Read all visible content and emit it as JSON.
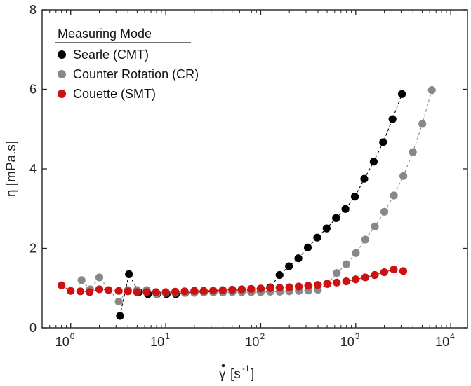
{
  "chart_data": {
    "type": "scatter",
    "title": "",
    "xlabel": "γ̇ [s⁻¹]",
    "ylabel": "η [mPa.s]",
    "xscale": "log",
    "xlim": [
      0.5,
      15000
    ],
    "ylim": [
      0,
      8
    ],
    "x_ticks": [
      1,
      10,
      100,
      1000,
      10000
    ],
    "x_tick_labels": [
      "10^0",
      "10^1",
      "10^2",
      "10^3",
      "10^4"
    ],
    "y_ticks": [
      0,
      2,
      4,
      6,
      8
    ],
    "y_tick_labels": [
      "0",
      "2",
      "4",
      "6",
      "8"
    ],
    "grid": false,
    "legend": {
      "title": "Measuring Mode",
      "placement": "top-left"
    },
    "series": [
      {
        "name": "Searle (CMT)",
        "color": "#000000",
        "line": "dashed",
        "x": [
          3.3,
          4.1,
          5.2,
          6.5,
          8.1,
          10.2,
          12.8,
          16,
          20,
          25.4,
          31.9,
          40,
          50.3,
          63.2,
          79.4,
          100,
          125.6,
          157.8,
          198.2,
          249,
          312.8,
          393,
          493.7,
          620.3,
          779.2,
          979,
          1230,
          1545,
          1941,
          2438,
          3063
        ],
        "y": [
          0.3,
          1.35,
          0.9,
          0.85,
          0.85,
          0.85,
          0.85,
          0.88,
          0.9,
          0.9,
          0.92,
          0.92,
          0.93,
          0.94,
          0.96,
          0.98,
          1.02,
          1.33,
          1.55,
          1.75,
          2.02,
          2.27,
          2.5,
          2.76,
          2.99,
          3.3,
          3.75,
          4.18,
          4.67,
          5.25,
          5.88
        ]
      },
      {
        "name": "Counter Rotation (CR)",
        "color": "#888888",
        "line": "dashed",
        "x": [
          1.3,
          1.6,
          2.0,
          3.2,
          4.0,
          5.0,
          6.3,
          8.0,
          10,
          12.6,
          15.9,
          20,
          25.2,
          31.7,
          39.9,
          50.2,
          63.2,
          79.6,
          100,
          126,
          159,
          200,
          252,
          317,
          399,
          502,
          632,
          796,
          1002,
          1262,
          1589,
          2000,
          2518,
          3170,
          3991,
          5024,
          6325
        ],
        "y": [
          1.2,
          0.97,
          1.27,
          0.66,
          0.95,
          0.95,
          0.95,
          0.85,
          0.88,
          0.88,
          0.88,
          0.88,
          0.89,
          0.89,
          0.89,
          0.9,
          0.9,
          0.9,
          0.9,
          0.91,
          0.91,
          0.92,
          0.93,
          0.94,
          0.96,
          1.1,
          1.38,
          1.6,
          1.88,
          2.22,
          2.55,
          2.92,
          3.33,
          3.82,
          4.42,
          5.13,
          5.98
        ]
      },
      {
        "name": "Couette (SMT)",
        "color": "#cc1111",
        "line": "dashed",
        "x": [
          0.8,
          1.0,
          1.26,
          1.58,
          2.0,
          2.5,
          3.2,
          4.0,
          5.0,
          6.3,
          7.9,
          10,
          12.6,
          15.8,
          20,
          25.1,
          31.6,
          39.8,
          50.1,
          63.1,
          79.4,
          100,
          126,
          158,
          200,
          251,
          316,
          398,
          501,
          631,
          794,
          1000,
          1259,
          1585,
          1995,
          2512,
          3162
        ],
        "y": [
          1.07,
          0.93,
          0.92,
          0.9,
          0.97,
          0.95,
          0.93,
          0.92,
          0.9,
          0.9,
          0.9,
          0.9,
          0.91,
          0.92,
          0.93,
          0.93,
          0.94,
          0.95,
          0.96,
          0.97,
          0.98,
          0.99,
          1.0,
          1.01,
          1.02,
          1.04,
          1.06,
          1.08,
          1.11,
          1.14,
          1.17,
          1.22,
          1.27,
          1.33,
          1.4,
          1.47,
          1.43
        ]
      }
    ]
  }
}
